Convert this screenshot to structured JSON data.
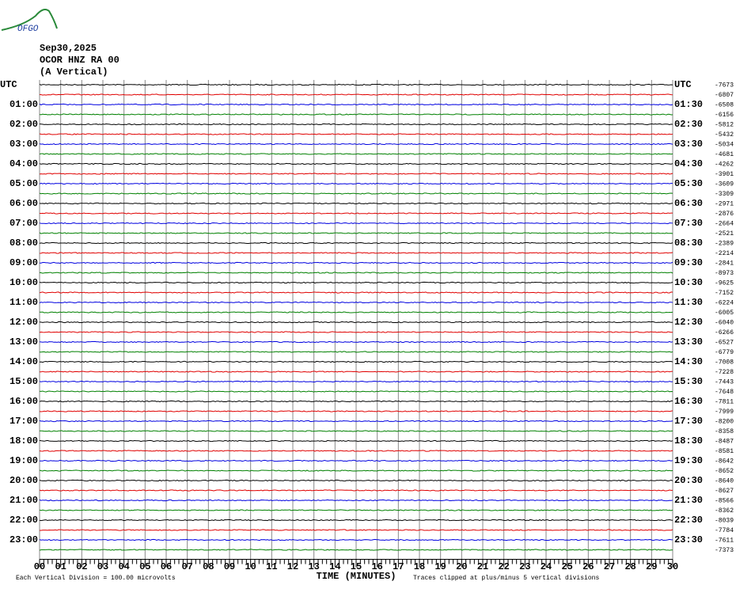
{
  "header": {
    "logo": "OFGO",
    "date": "Sep30,2025",
    "station": "OCOR HNZ RA 00",
    "component": "(A Vertical)"
  },
  "plot": {
    "left_labels": [
      "UTC",
      "01:00",
      "02:00",
      "03:00",
      "04:00",
      "05:00",
      "06:00",
      "07:00",
      "08:00",
      "09:00",
      "10:00",
      "11:00",
      "12:00",
      "13:00",
      "14:00",
      "15:00",
      "16:00",
      "17:00",
      "18:00",
      "19:00",
      "20:00",
      "21:00",
      "22:00",
      "23:00"
    ],
    "right_labels": [
      "UTC",
      "01:30",
      "02:30",
      "03:30",
      "04:30",
      "05:30",
      "06:30",
      "07:30",
      "08:30",
      "09:30",
      "10:30",
      "11:30",
      "12:30",
      "13:30",
      "14:30",
      "15:30",
      "16:30",
      "17:30",
      "18:30",
      "19:30",
      "20:30",
      "21:30",
      "22:30",
      "23:30"
    ],
    "offsets": [
      -7673,
      -6807,
      -6508,
      -6156,
      -5812,
      -5432,
      -5034,
      -4681,
      -4262,
      -3901,
      -3609,
      -3309,
      -2971,
      -2876,
      -2664,
      -2521,
      -2389,
      -2214,
      -2841,
      -8973,
      -9625,
      -7152,
      -6224,
      -6005,
      -6040,
      -6266,
      -6527,
      -6779,
      -7008,
      -7228,
      -7443,
      -7648,
      -7811,
      -7999,
      -8200,
      -8358,
      -8487,
      -8581,
      -8642,
      -8652,
      -8640,
      -8627,
      -8566,
      -8362,
      -8039,
      -7784,
      -7611,
      -7373
    ],
    "minutes": [
      "00",
      "01",
      "02",
      "03",
      "04",
      "05",
      "06",
      "07",
      "08",
      "09",
      "10",
      "11",
      "12",
      "13",
      "14",
      "15",
      "16",
      "17",
      "18",
      "19",
      "20",
      "21",
      "22",
      "23",
      "24",
      "25",
      "26",
      "27",
      "28",
      "29",
      "30"
    ],
    "x_axis_title": "TIME (MINUTES)",
    "footer_left": "Each Vertical Division =  100.00 microvolts",
    "footer_right": "Traces clipped at plus/minus 5 vertical divisions"
  }
}
